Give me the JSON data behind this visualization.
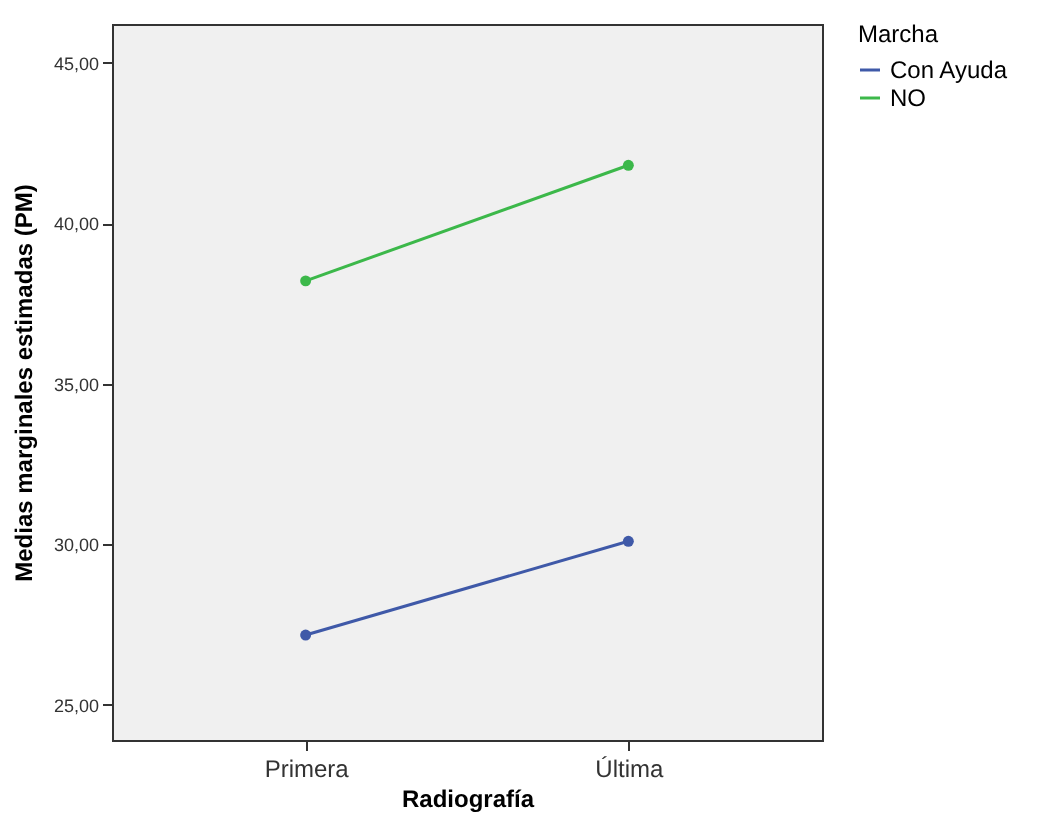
{
  "chart_data": {
    "type": "line",
    "xlabel": "Radiografía",
    "ylabel": "Medias marginales estimadas (PM)",
    "legend_title": "Marcha",
    "categories": [
      "Primera",
      "Última"
    ],
    "series": [
      {
        "name": "Con Ayuda",
        "color": "#3f59a8",
        "values": [
          27.17,
          30.09
        ]
      },
      {
        "name": "NO",
        "color": "#3cb84a",
        "values": [
          38.2,
          41.8
        ]
      }
    ],
    "ylim": [
      23.9,
      46.2
    ],
    "yticks": [
      {
        "value": 25,
        "label": "25,00"
      },
      {
        "value": 30,
        "label": "30,00"
      },
      {
        "value": 35,
        "label": "35,00"
      },
      {
        "value": 40,
        "label": "40,00"
      },
      {
        "value": 45,
        "label": "45,00"
      }
    ],
    "legend": "top right",
    "marker": "circle"
  }
}
